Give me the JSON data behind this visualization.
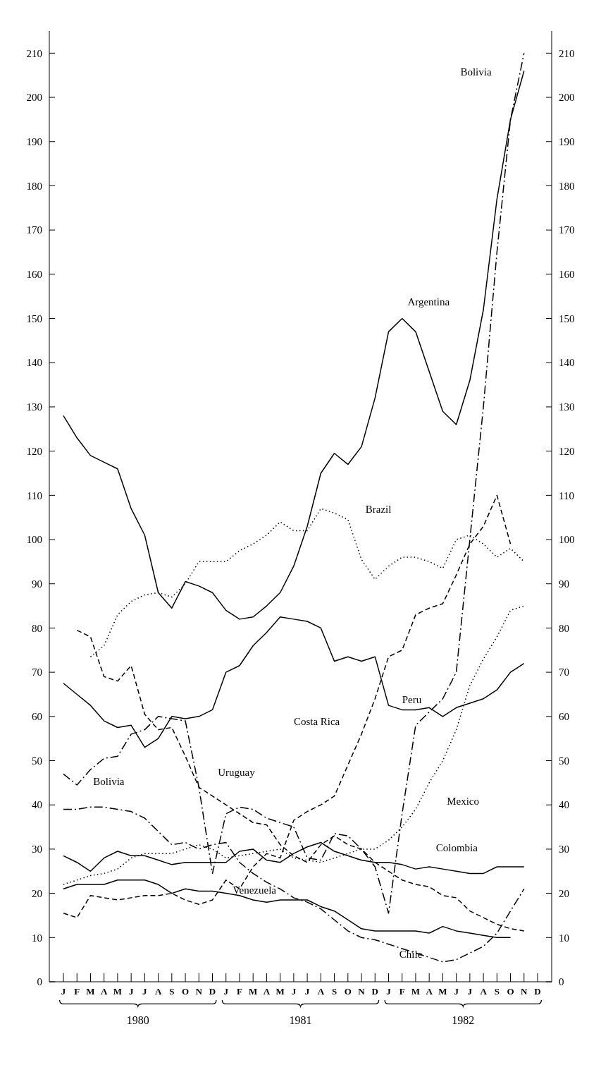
{
  "chart_data": {
    "type": "line",
    "categories": [
      "J",
      "F",
      "M",
      "A",
      "M",
      "J",
      "J",
      "A",
      "S",
      "O",
      "N",
      "D",
      "J",
      "F",
      "M",
      "A",
      "M",
      "J",
      "J",
      "A",
      "S",
      "O",
      "N",
      "D",
      "J",
      "F",
      "M",
      "A",
      "M",
      "J",
      "J",
      "A",
      "S",
      "O",
      "N",
      "D"
    ],
    "ylim": [
      0,
      215
    ],
    "yticks": [
      0,
      10,
      20,
      30,
      40,
      50,
      60,
      70,
      80,
      90,
      100,
      110,
      120,
      130,
      140,
      150,
      160,
      170,
      180,
      190,
      200,
      210
    ],
    "y2lim": [
      0,
      215
    ],
    "y2ticks": [
      0,
      10,
      20,
      30,
      40,
      50,
      60,
      70,
      80,
      90,
      100,
      110,
      120,
      130,
      140,
      150,
      160,
      170,
      180,
      190,
      200,
      210
    ],
    "annotations": [
      "1980",
      "1981",
      "1982"
    ],
    "grid": false,
    "series": [
      {
        "name": "Argentina",
        "color": "#000000",
        "line_style": "solid",
        "values": [
          128,
          123,
          119,
          117.5,
          116,
          107,
          101,
          88,
          84.5,
          90.5,
          89.5,
          88,
          84,
          82,
          82.5,
          85,
          88,
          94,
          103,
          115,
          119.5,
          117,
          121,
          132,
          147,
          150,
          147,
          138,
          129,
          126,
          136,
          152,
          177,
          195,
          206,
          null
        ]
      },
      {
        "name": "Brazil",
        "color": "#000000",
        "line_style": "dotted",
        "values": [
          null,
          null,
          73.5,
          76,
          83,
          86,
          87.5,
          88,
          87,
          90,
          95,
          95,
          95,
          97.5,
          99,
          101,
          104,
          102,
          102,
          107,
          106,
          104.5,
          95.5,
          91,
          94,
          96,
          96,
          95,
          93.5,
          100,
          101,
          99,
          96,
          98,
          95,
          null
        ]
      },
      {
        "name": "Peru",
        "color": "#000000",
        "line_style": "solid",
        "values": [
          67.5,
          65,
          62.5,
          59,
          57.5,
          58,
          53,
          55,
          60,
          59.5,
          60,
          61.5,
          70,
          71.5,
          76,
          79,
          82.5,
          82,
          81.5,
          80,
          72.5,
          73.5,
          72.5,
          73.5,
          62.5,
          61.5,
          61.5,
          62,
          60,
          62,
          63,
          64,
          66,
          70,
          72,
          null
        ]
      },
      {
        "name": "Costa Rica",
        "color": "#000000",
        "line_style": "dashed",
        "values": [
          15.5,
          14.5,
          19.5,
          19,
          18.5,
          19,
          19.5,
          19.5,
          20,
          18.5,
          17.5,
          18.5,
          23,
          21,
          26,
          29,
          28,
          36.5,
          38.5,
          40,
          42,
          49,
          56,
          64,
          73.5,
          75,
          83,
          84.5,
          85.5,
          92,
          99,
          103,
          110,
          99,
          null,
          null
        ]
      },
      {
        "name": "Bolivia",
        "color": "#000000",
        "line_style": "dashdot",
        "values": [
          47,
          44.5,
          48,
          50.5,
          51,
          56,
          57,
          60,
          59.5,
          59,
          44,
          24.5,
          38,
          39.5,
          39,
          37,
          36,
          35,
          28,
          27.5,
          33.5,
          33,
          30,
          26,
          15.5,
          38,
          58,
          61,
          64,
          70,
          100,
          130,
          165,
          195,
          210,
          null
        ]
      },
      {
        "name": "Uruguay",
        "color": "#000000",
        "line_style": "dashed",
        "values": [
          null,
          79.5,
          78,
          69,
          68,
          71.5,
          60.5,
          57,
          57.5,
          51,
          44,
          42,
          40,
          38,
          36,
          35.5,
          31,
          28.5,
          27,
          31,
          33,
          31,
          30,
          27,
          25,
          23,
          22,
          21.5,
          19.5,
          19,
          16,
          14.5,
          13,
          12,
          11.5,
          null
        ]
      },
      {
        "name": "Mexico",
        "color": "#000000",
        "line_style": "dotted",
        "values": [
          22,
          23,
          24,
          24.5,
          25.5,
          28,
          29,
          29,
          29,
          30,
          31,
          30,
          28,
          28.5,
          29,
          29.5,
          30,
          28,
          27.5,
          27,
          28,
          29,
          30,
          30,
          32,
          35,
          39,
          45,
          50,
          57,
          67,
          73,
          78,
          84,
          85,
          null
        ]
      },
      {
        "name": "Colombia",
        "color": "#000000",
        "line_style": "solid",
        "values": [
          28.5,
          27,
          25,
          28,
          29.5,
          28.5,
          28.5,
          27.5,
          26.5,
          27,
          27,
          27,
          27,
          29.5,
          30,
          27.5,
          27,
          29,
          30.5,
          31.5,
          29.5,
          28.5,
          27.5,
          27,
          27,
          26.5,
          25.5,
          26,
          25.5,
          25,
          24.5,
          24.5,
          26,
          26,
          26,
          null
        ]
      },
      {
        "name": "Venezuela",
        "color": "#000000",
        "line_style": "solid",
        "values": [
          21,
          22,
          22,
          22,
          23,
          23,
          23,
          22,
          20,
          21,
          20.5,
          20.5,
          20,
          19.5,
          18.5,
          18,
          18.5,
          18.5,
          18.5,
          17,
          16,
          14,
          12,
          11.5,
          11.5,
          11.5,
          11.5,
          11,
          12.5,
          11.5,
          11,
          10.5,
          10,
          10,
          null,
          null
        ]
      },
      {
        "name": "Chile",
        "color": "#000000",
        "line_style": "dashdot",
        "values": [
          39,
          39,
          39.5,
          39.5,
          39,
          38.5,
          37,
          34,
          31,
          31.5,
          30,
          31,
          31.5,
          27,
          24.5,
          22.5,
          21,
          19,
          18,
          16.5,
          14,
          11.5,
          10,
          9.5,
          8.5,
          7.5,
          6.5,
          5.5,
          4.5,
          5,
          6.5,
          8,
          11,
          16,
          21,
          null
        ]
      }
    ]
  }
}
